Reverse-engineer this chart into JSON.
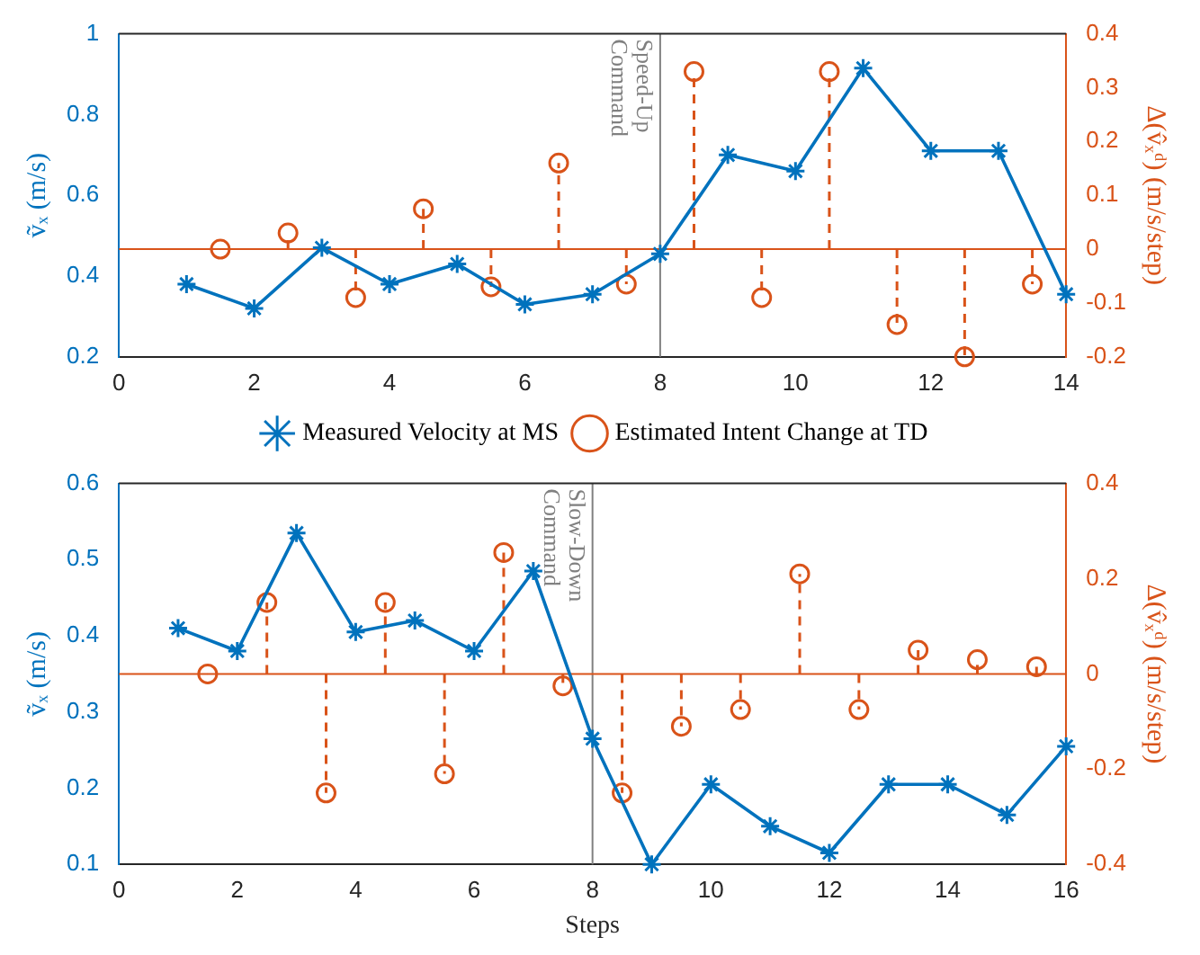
{
  "chart_data": [
    {
      "type": "line",
      "ylabel": "ṽₓ (m/s)",
      "y2label": "Δ(v̂ₓᵈ) (m/s/step)",
      "xlim": [
        0,
        14
      ],
      "xticks": [
        0,
        2,
        4,
        6,
        8,
        10,
        12,
        14
      ],
      "ylim": [
        0.2,
        1
      ],
      "yticks": [
        0.2,
        0.4,
        0.6,
        0.8,
        1
      ],
      "y2lim": [
        -0.2,
        0.4
      ],
      "y2ticks": [
        -0.2,
        -0.1,
        0,
        0.1,
        0.2,
        0.3,
        0.4
      ],
      "grid": false,
      "legend": "bottom",
      "series": [
        {
          "name": "Measured Velocity at MS",
          "type": "line",
          "color": "#0072bd",
          "marker": "cross",
          "line_style": "solid",
          "x": [
            1,
            2,
            3,
            4,
            5,
            6,
            7,
            8,
            9,
            10,
            11,
            12,
            13,
            14
          ],
          "values": [
            0.38,
            0.32,
            0.47,
            0.38,
            0.43,
            0.33,
            0.355,
            0.455,
            0.7,
            0.66,
            0.915,
            0.71,
            0.71,
            0.355
          ]
        },
        {
          "name": "Estimated Intent Change at TD",
          "type": "lollipop",
          "axis": "y2",
          "color": "#d95319",
          "marker": "circle",
          "line_style": "dashed",
          "x": [
            1.5,
            2.5,
            3.5,
            4.5,
            5.5,
            6.5,
            7.5,
            8.5,
            9.5,
            10.5,
            11.5,
            12.5,
            13.5
          ],
          "values": [
            0,
            0.03,
            -0.09,
            0.075,
            -0.07,
            0.16,
            -0.065,
            0.33,
            -0.09,
            0.33,
            -0.14,
            -0.2,
            -0.065
          ]
        }
      ],
      "ref_lines": [
        {
          "axis": "x",
          "value": 8,
          "label": "Speed-Up Command",
          "color": "#808080"
        },
        {
          "axis": "y2",
          "value": 0,
          "color": "#d95319"
        }
      ]
    },
    {
      "type": "line",
      "xlabel": "Steps",
      "ylabel": "ṽₓ (m/s)",
      "y2label": "Δ(v̂ₓᵈ) (m/s/step)",
      "xlim": [
        0,
        16
      ],
      "xticks": [
        0,
        2,
        4,
        6,
        8,
        10,
        12,
        14,
        16
      ],
      "ylim": [
        0.1,
        0.6
      ],
      "yticks": [
        0.1,
        0.2,
        0.3,
        0.4,
        0.5,
        0.6
      ],
      "y2lim": [
        -0.4,
        0.4
      ],
      "y2ticks": [
        -0.4,
        -0.2,
        0,
        0.2,
        0.4
      ],
      "grid": false,
      "series": [
        {
          "type": "line",
          "color": "#0072bd",
          "marker": "cross",
          "line_style": "solid",
          "x": [
            1,
            2,
            3,
            4,
            5,
            6,
            7,
            8,
            9,
            10,
            11,
            12,
            13,
            14,
            15,
            16
          ],
          "values": [
            0.41,
            0.38,
            0.535,
            0.405,
            0.42,
            0.38,
            0.485,
            0.265,
            0.1,
            0.205,
            0.15,
            0.115,
            0.205,
            0.205,
            0.165,
            0.255
          ]
        },
        {
          "type": "lollipop",
          "axis": "y2",
          "color": "#d95319",
          "marker": "circle",
          "line_style": "dashed",
          "x": [
            1.5,
            2.5,
            3.5,
            4.5,
            5.5,
            6.5,
            7.5,
            8.5,
            9.5,
            10.5,
            11.5,
            12.5,
            13.5,
            14.5,
            15.5
          ],
          "values": [
            0,
            0.15,
            -0.25,
            0.15,
            -0.21,
            0.255,
            -0.025,
            -0.25,
            -0.11,
            -0.075,
            0.21,
            -0.075,
            0.05,
            0.03,
            0.015
          ]
        }
      ],
      "ref_lines": [
        {
          "axis": "x",
          "value": 8,
          "label": "Slow-Down Command",
          "color": "#808080"
        },
        {
          "axis": "y2",
          "value": 0,
          "color": "#d95319"
        }
      ]
    }
  ]
}
